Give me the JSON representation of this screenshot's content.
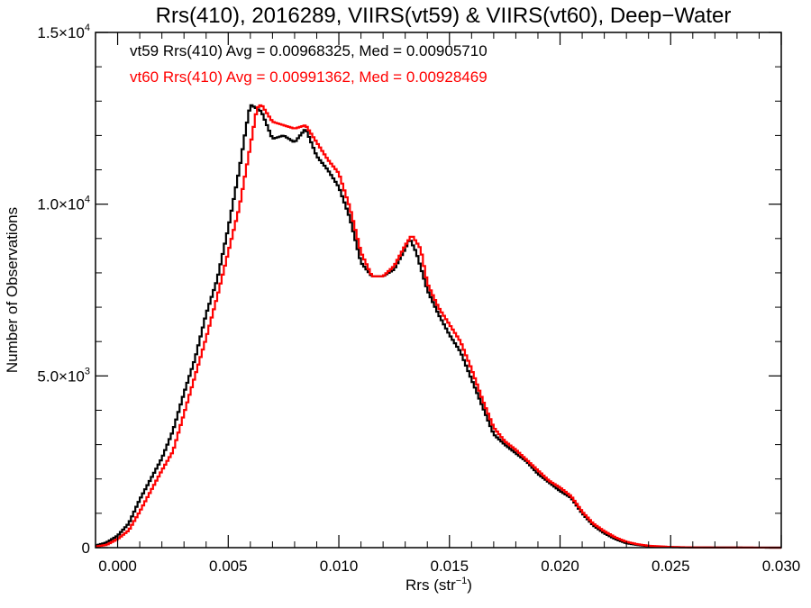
{
  "chart_data": {
    "type": "line",
    "title": "Rrs(410), 2016289, VIIRS(vt59) & VIIRS(vt60), Deep−Water",
    "xlabel_main": "Rrs (str",
    "xlabel_exp": "−1",
    "xlabel_close": ")",
    "ylabel": "Number of Observations",
    "xlim": [
      -0.001,
      0.03
    ],
    "ylim": [
      0,
      15000
    ],
    "xticks": [
      {
        "value": 0.0,
        "label": "0.000"
      },
      {
        "value": 0.005,
        "label": "0.005"
      },
      {
        "value": 0.01,
        "label": "0.010"
      },
      {
        "value": 0.015,
        "label": "0.015"
      },
      {
        "value": 0.02,
        "label": "0.020"
      },
      {
        "value": 0.025,
        "label": "0.025"
      },
      {
        "value": 0.03,
        "label": "0.030"
      }
    ],
    "yticks": [
      {
        "value": 0,
        "mant": "0",
        "exp": ""
      },
      {
        "value": 5000,
        "mant": "5.0×10",
        "exp": "3"
      },
      {
        "value": 10000,
        "mant": "1.0×10",
        "exp": "4"
      },
      {
        "value": 15000,
        "mant": "1.5×10",
        "exp": "4"
      }
    ],
    "series": [
      {
        "name": "vt59",
        "color": "#000000",
        "legend": "vt59 Rrs(410) Avg = 0.00968325, Med = 0.00905710",
        "points": [
          [
            -0.001,
            60
          ],
          [
            -0.0005,
            150
          ],
          [
            0.0,
            350
          ],
          [
            0.0005,
            700
          ],
          [
            0.001,
            1400
          ],
          [
            0.0015,
            2000
          ],
          [
            0.002,
            2600
          ],
          [
            0.0025,
            3400
          ],
          [
            0.003,
            4500
          ],
          [
            0.0035,
            5500
          ],
          [
            0.004,
            6800
          ],
          [
            0.0045,
            7800
          ],
          [
            0.005,
            9300
          ],
          [
            0.0055,
            11000
          ],
          [
            0.0058,
            12200
          ],
          [
            0.006,
            12900
          ],
          [
            0.0065,
            12700
          ],
          [
            0.007,
            11900
          ],
          [
            0.0075,
            12000
          ],
          [
            0.008,
            11800
          ],
          [
            0.0085,
            12200
          ],
          [
            0.009,
            11400
          ],
          [
            0.0095,
            11000
          ],
          [
            0.01,
            10500
          ],
          [
            0.0105,
            9600
          ],
          [
            0.011,
            8300
          ],
          [
            0.0115,
            7900
          ],
          [
            0.012,
            7900
          ],
          [
            0.0125,
            8100
          ],
          [
            0.013,
            8700
          ],
          [
            0.0132,
            9000
          ],
          [
            0.0135,
            8600
          ],
          [
            0.014,
            7500
          ],
          [
            0.0145,
            6800
          ],
          [
            0.015,
            6200
          ],
          [
            0.0155,
            5700
          ],
          [
            0.016,
            4900
          ],
          [
            0.0165,
            4100
          ],
          [
            0.017,
            3300
          ],
          [
            0.0175,
            3000
          ],
          [
            0.018,
            2750
          ],
          [
            0.0185,
            2500
          ],
          [
            0.019,
            2150
          ],
          [
            0.0195,
            1900
          ],
          [
            0.02,
            1650
          ],
          [
            0.0205,
            1450
          ],
          [
            0.021,
            1000
          ],
          [
            0.0215,
            650
          ],
          [
            0.022,
            420
          ],
          [
            0.0225,
            250
          ],
          [
            0.023,
            130
          ],
          [
            0.0235,
            80
          ],
          [
            0.024,
            40
          ],
          [
            0.025,
            15
          ],
          [
            0.026,
            5
          ],
          [
            0.03,
            0
          ]
        ]
      },
      {
        "name": "vt60",
        "color": "#ff0000",
        "legend": "vt60 Rrs(410) Avg = 0.00991362, Med = 0.00928469",
        "points": [
          [
            -0.001,
            30
          ],
          [
            -0.0005,
            80
          ],
          [
            0.0,
            250
          ],
          [
            0.0005,
            500
          ],
          [
            0.001,
            1050
          ],
          [
            0.0015,
            1650
          ],
          [
            0.002,
            2250
          ],
          [
            0.0025,
            2800
          ],
          [
            0.003,
            3900
          ],
          [
            0.0035,
            5000
          ],
          [
            0.004,
            6100
          ],
          [
            0.0045,
            7300
          ],
          [
            0.005,
            8600
          ],
          [
            0.0055,
            9900
          ],
          [
            0.006,
            11700
          ],
          [
            0.0063,
            12800
          ],
          [
            0.0065,
            12900
          ],
          [
            0.007,
            12400
          ],
          [
            0.0075,
            12300
          ],
          [
            0.008,
            12200
          ],
          [
            0.0085,
            12300
          ],
          [
            0.009,
            11800
          ],
          [
            0.0095,
            11300
          ],
          [
            0.01,
            10900
          ],
          [
            0.0105,
            9900
          ],
          [
            0.011,
            8600
          ],
          [
            0.0115,
            7900
          ],
          [
            0.012,
            7900
          ],
          [
            0.0125,
            8200
          ],
          [
            0.013,
            8800
          ],
          [
            0.0133,
            9100
          ],
          [
            0.0137,
            8700
          ],
          [
            0.014,
            7700
          ],
          [
            0.0145,
            7000
          ],
          [
            0.015,
            6500
          ],
          [
            0.0155,
            6000
          ],
          [
            0.016,
            5200
          ],
          [
            0.0165,
            4300
          ],
          [
            0.017,
            3500
          ],
          [
            0.0175,
            3100
          ],
          [
            0.018,
            2850
          ],
          [
            0.0185,
            2550
          ],
          [
            0.019,
            2250
          ],
          [
            0.0195,
            1950
          ],
          [
            0.02,
            1750
          ],
          [
            0.0205,
            1500
          ],
          [
            0.021,
            1050
          ],
          [
            0.0215,
            700
          ],
          [
            0.022,
            480
          ],
          [
            0.0225,
            300
          ],
          [
            0.023,
            170
          ],
          [
            0.0235,
            100
          ],
          [
            0.024,
            55
          ],
          [
            0.025,
            20
          ],
          [
            0.026,
            7
          ],
          [
            0.03,
            0
          ]
        ]
      }
    ]
  }
}
